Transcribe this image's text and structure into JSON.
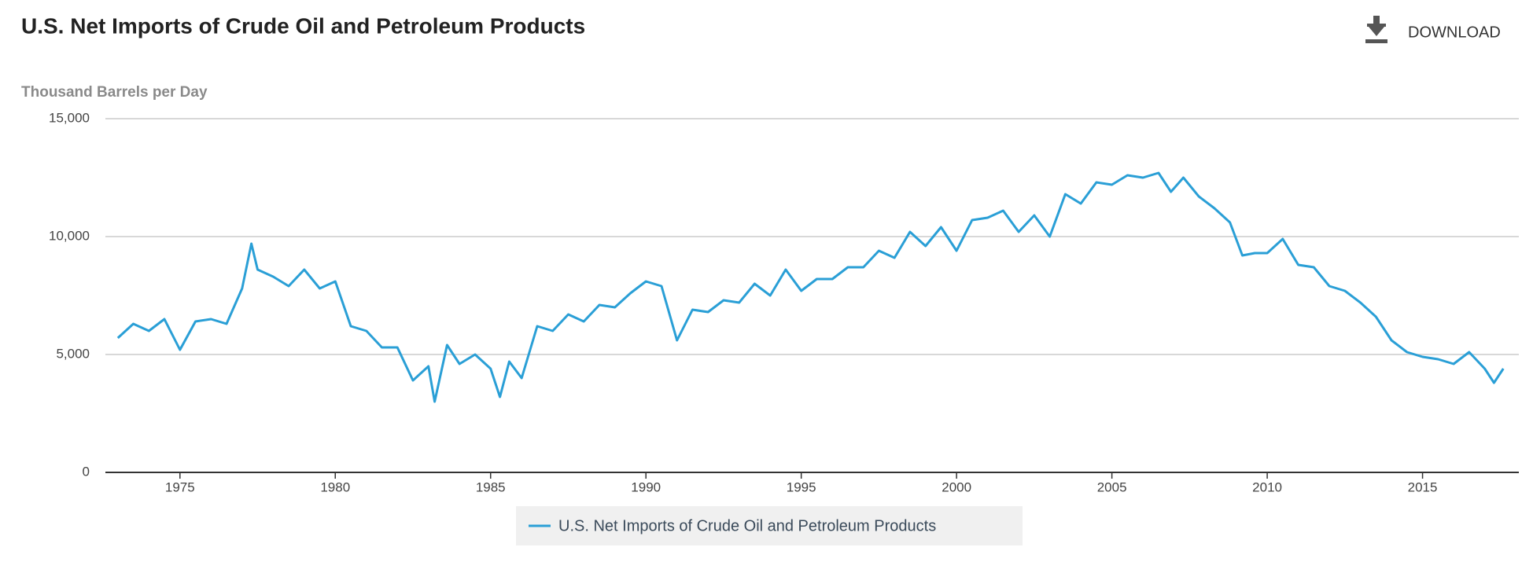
{
  "chart_data": {
    "type": "line",
    "title": "U.S. Net Imports of Crude Oil and Petroleum Products",
    "subtitle": "Thousand Barrels per Day",
    "download": "DOWNLOAD",
    "x": [
      1973.0,
      1973.5,
      1974.0,
      1974.5,
      1975.0,
      1975.5,
      1976.0,
      1976.5,
      1977.0,
      1977.3,
      1977.5,
      1978.0,
      1978.5,
      1979.0,
      1979.5,
      1980.0,
      1980.5,
      1981.0,
      1981.5,
      1982.0,
      1982.5,
      1983.0,
      1983.2,
      1983.6,
      1984.0,
      1984.5,
      1985.0,
      1985.3,
      1985.6,
      1986.0,
      1986.5,
      1987.0,
      1987.5,
      1988.0,
      1988.5,
      1989.0,
      1989.5,
      1990.0,
      1990.5,
      1991.0,
      1991.5,
      1992.0,
      1992.5,
      1993.0,
      1993.5,
      1994.0,
      1994.5,
      1995.0,
      1995.5,
      1996.0,
      1996.5,
      1997.0,
      1997.5,
      1998.0,
      1998.5,
      1999.0,
      1999.5,
      2000.0,
      2000.5,
      2001.0,
      2001.5,
      2002.0,
      2002.5,
      2003.0,
      2003.5,
      2004.0,
      2004.5,
      2005.0,
      2005.5,
      2006.0,
      2006.5,
      2006.9,
      2007.3,
      2007.8,
      2008.3,
      2008.8,
      2009.2,
      2009.6,
      2010.0,
      2010.5,
      2011.0,
      2011.5,
      2012.0,
      2012.5,
      2013.0,
      2013.5,
      2014.0,
      2014.5,
      2015.0,
      2015.5,
      2016.0,
      2016.5,
      2017.0,
      2017.3,
      2017.6
    ],
    "series": [
      {
        "name": "U.S. Net Imports of Crude Oil and Petroleum Products",
        "color": "#2a9fd6",
        "values": [
          5700,
          6300,
          6000,
          6500,
          5200,
          6400,
          6500,
          6300,
          7800,
          9700,
          8600,
          8300,
          7900,
          8600,
          7800,
          8100,
          6200,
          6000,
          5300,
          5300,
          3900,
          4500,
          3000,
          5400,
          4600,
          5000,
          4400,
          3200,
          4700,
          4000,
          6200,
          6000,
          6700,
          6400,
          7100,
          7000,
          7600,
          8100,
          7900,
          5600,
          6900,
          6800,
          7300,
          7200,
          8000,
          7500,
          8600,
          7700,
          8200,
          8200,
          8700,
          8700,
          9400,
          9100,
          10200,
          9600,
          10400,
          9400,
          10700,
          10800,
          11100,
          10200,
          10900,
          10000,
          11800,
          11400,
          12300,
          12200,
          12600,
          12500,
          12700,
          11900,
          12500,
          11700,
          11200,
          10600,
          9200,
          9300,
          9300,
          9900,
          8800,
          8700,
          7900,
          7700,
          7200,
          6600,
          5600,
          5100,
          4900,
          4800,
          4600,
          5100,
          4400,
          3800,
          4400
        ]
      }
    ],
    "xlim": [
      1972.6,
      2018.1
    ],
    "xticks": [
      1975,
      1980,
      1985,
      1990,
      1995,
      2000,
      2005,
      2010,
      2015
    ],
    "ylim": [
      0,
      15000
    ],
    "yticks": [
      0,
      {
        "value": 5000,
        "label": "5,000"
      },
      {
        "value": 10000,
        "label": "10,000"
      },
      {
        "value": 15000,
        "label": "15,000"
      }
    ],
    "grid": true
  }
}
